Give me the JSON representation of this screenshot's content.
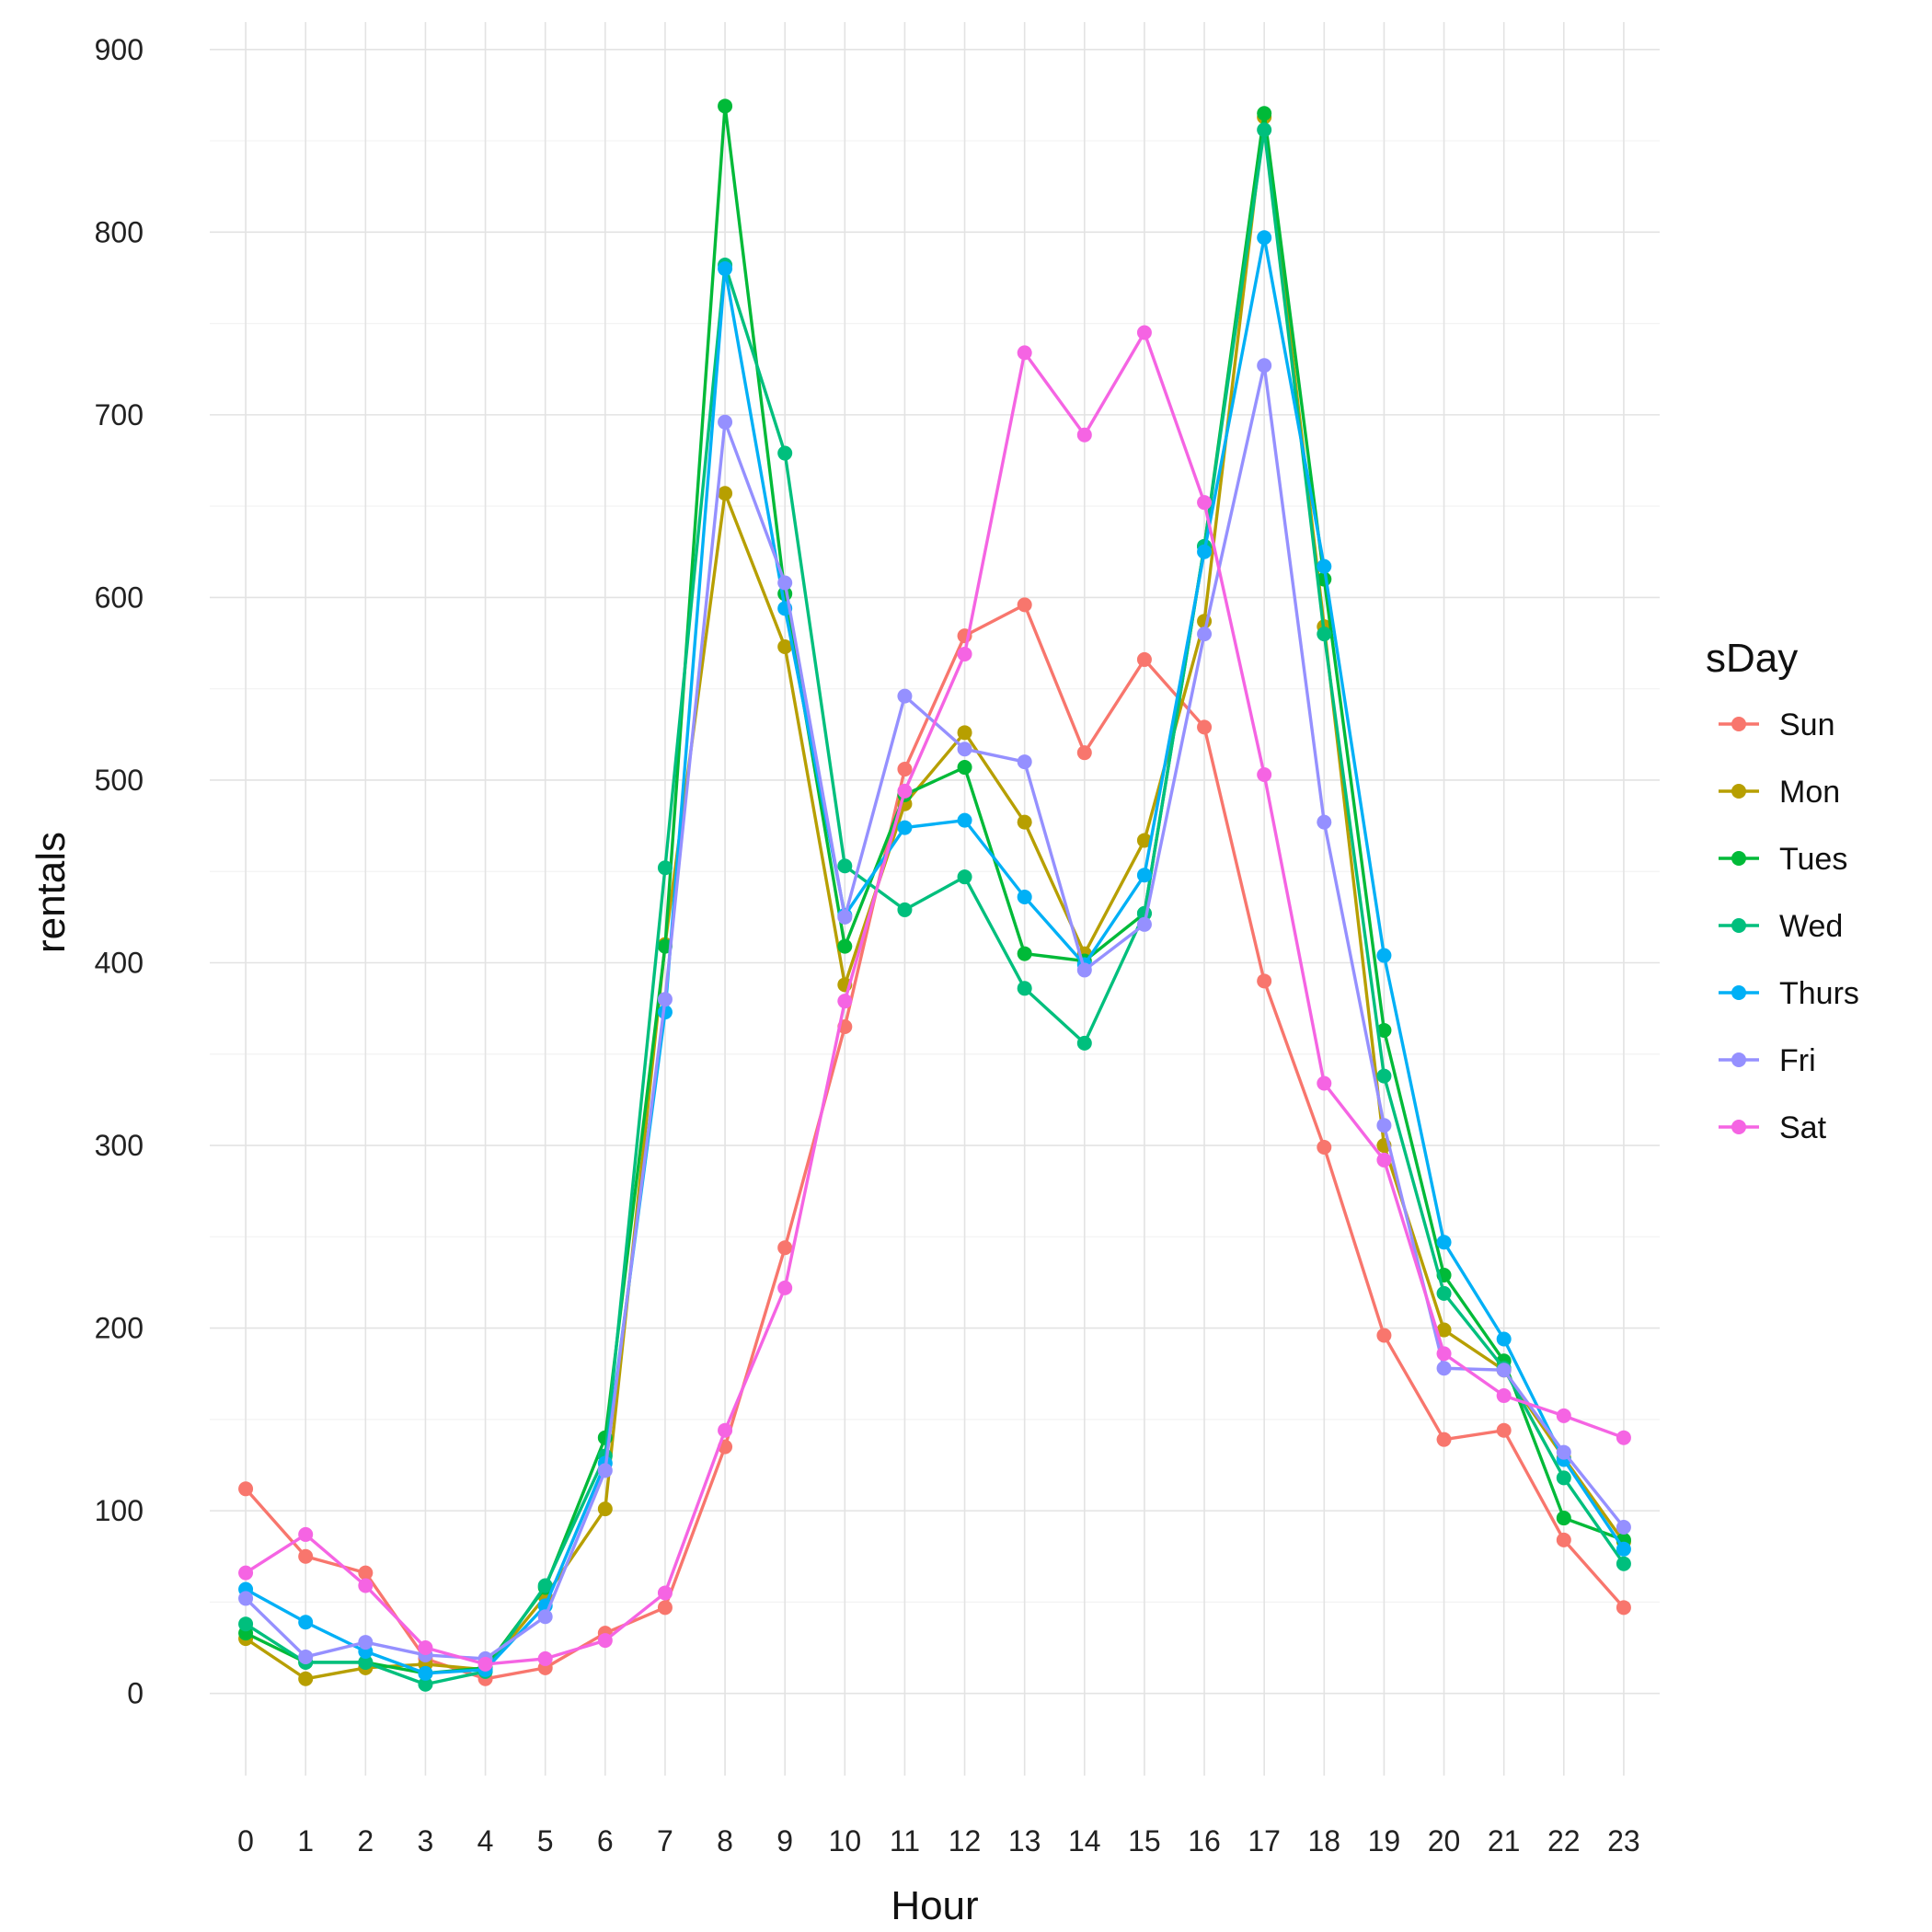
{
  "chart_data": {
    "type": "line",
    "xlabel": "Hour",
    "ylabel": "rentals",
    "x": [
      0,
      1,
      2,
      3,
      4,
      5,
      6,
      7,
      8,
      9,
      10,
      11,
      12,
      13,
      14,
      15,
      16,
      17,
      18,
      19,
      20,
      21,
      22,
      23
    ],
    "xlim": [
      -0.6,
      23.6
    ],
    "ylim": [
      -45,
      915
    ],
    "yticks": [
      0,
      100,
      200,
      300,
      400,
      500,
      600,
      700,
      800,
      900
    ],
    "grid": true,
    "legend": {
      "title": "sDay",
      "position": "right"
    },
    "series": [
      {
        "name": "Sun",
        "color": "#F8766D",
        "values": [
          112,
          75,
          66,
          19,
          8,
          14,
          33,
          47,
          135,
          244,
          365,
          506,
          579,
          596,
          515,
          566,
          529,
          390,
          299,
          196,
          139,
          144,
          84,
          47
        ]
      },
      {
        "name": "Mon",
        "color": "#B79F00",
        "values": [
          30,
          8,
          14,
          16,
          13,
          53,
          101,
          410,
          657,
          573,
          388,
          487,
          526,
          477,
          405,
          467,
          587,
          863,
          584,
          300,
          199,
          177,
          129,
          83
        ]
      },
      {
        "name": "Tues",
        "color": "#00BA38",
        "values": [
          33,
          17,
          17,
          11,
          14,
          58,
          140,
          409,
          869,
          602,
          409,
          492,
          507,
          405,
          401,
          427,
          628,
          865,
          610,
          363,
          229,
          182,
          96,
          84
        ]
      },
      {
        "name": "Wed",
        "color": "#00BF7D",
        "values": [
          38,
          17,
          17,
          5,
          12,
          59,
          130,
          452,
          782,
          679,
          453,
          429,
          447,
          386,
          356,
          427,
          628,
          856,
          580,
          338,
          219,
          178,
          118,
          71
        ]
      },
      {
        "name": "Thurs",
        "color": "#00B0F6",
        "values": [
          57,
          39,
          23,
          11,
          13,
          48,
          126,
          373,
          780,
          594,
          426,
          474,
          478,
          436,
          399,
          448,
          625,
          797,
          617,
          404,
          247,
          194,
          128,
          79
        ]
      },
      {
        "name": "Fri",
        "color": "#9590FF",
        "values": [
          52,
          20,
          28,
          21,
          19,
          42,
          122,
          380,
          696,
          608,
          425,
          546,
          517,
          510,
          396,
          421,
          580,
          727,
          477,
          311,
          178,
          177,
          132,
          91
        ]
      },
      {
        "name": "Sat",
        "color": "#F564E3",
        "values": [
          66,
          87,
          59,
          25,
          16,
          19,
          29,
          55,
          144,
          222,
          379,
          494,
          569,
          734,
          689,
          745,
          652,
          503,
          334,
          292,
          186,
          163,
          152,
          140
        ]
      }
    ]
  }
}
